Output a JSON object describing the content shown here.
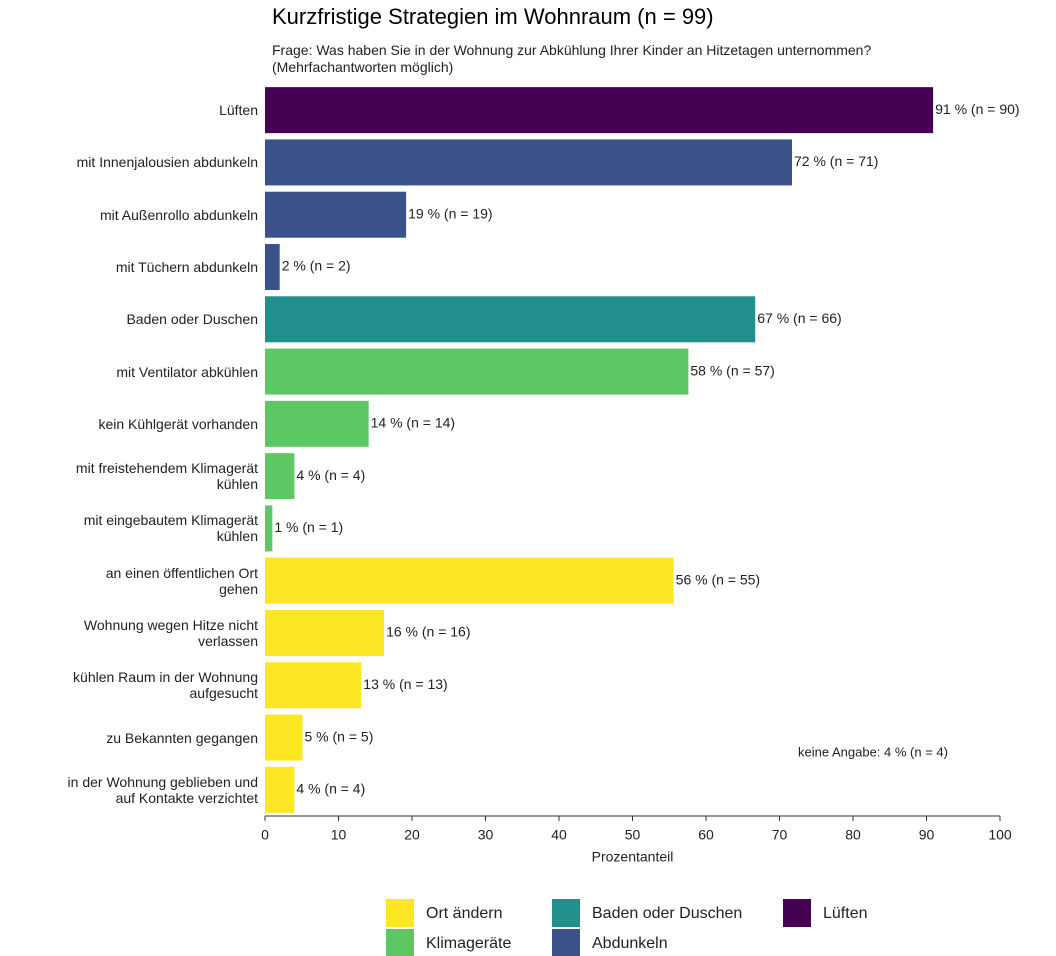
{
  "chart_data": {
    "type": "bar",
    "orientation": "horizontal",
    "title": "Kurzfristige Strategien im Wohnraum (n = 99)",
    "subtitle": "Frage: Was haben Sie in der Wohnung zur Abkühlung Ihrer Kinder an Hitzetagen unternommen? (Mehrfachantworten möglich)",
    "xlabel": "Prozentanteil",
    "annotation": "keine Angabe: 4 % (n = 4)",
    "categories": [
      "Lüften",
      "mit Innenjalousien abdunkeln",
      "mit Außenrollo abdunkeln",
      "mit Tüchern abdunkeln",
      "Baden oder Duschen",
      "mit Ventilator abkühlen",
      "kein Kühlgerät vorhanden",
      "mit freistehendem Klimagerät\nkühlen",
      "mit eingebautem Klimagerät\nkühlen",
      "an einen öffentlichen Ort\ngehen",
      "Wohnung wegen Hitze nicht\nverlassen",
      "kühlen Raum in der Wohnung\naufgesucht",
      "zu Bekannten gegangen",
      "in der Wohnung geblieben und\nauf Kontakte verzichtet"
    ],
    "series": [
      {
        "name": "Ort ändern",
        "color": "#fde725",
        "values": [
          null,
          null,
          null,
          null,
          null,
          null,
          null,
          null,
          null,
          55.6,
          16.2,
          13.1,
          5.1,
          4.0
        ],
        "value_labels": [
          null,
          null,
          null,
          null,
          null,
          null,
          null,
          null,
          null,
          "56 % (n = 55)",
          "16 % (n = 16)",
          "13 % (n = 13)",
          "5 % (n = 5)",
          "4 % (n = 4)"
        ]
      },
      {
        "name": "Klimageräte",
        "color": "#5dc863",
        "values": [
          null,
          null,
          null,
          null,
          null,
          57.6,
          14.1,
          4.0,
          1.0,
          null,
          null,
          null,
          null,
          null
        ],
        "value_labels": [
          null,
          null,
          null,
          null,
          null,
          "58 % (n = 57)",
          "14 % (n = 14)",
          "4 % (n = 4)",
          "1 % (n = 1)",
          null,
          null,
          null,
          null,
          null
        ]
      },
      {
        "name": "Baden oder Duschen",
        "color": "#21908d",
        "values": [
          null,
          null,
          null,
          null,
          66.7,
          null,
          null,
          null,
          null,
          null,
          null,
          null,
          null,
          null
        ],
        "value_labels": [
          null,
          null,
          null,
          null,
          "67 % (n = 66)",
          null,
          null,
          null,
          null,
          null,
          null,
          null,
          null,
          null
        ]
      },
      {
        "name": "Abdunkeln",
        "color": "#3b528b",
        "values": [
          null,
          71.7,
          19.2,
          2.0,
          null,
          null,
          null,
          null,
          null,
          null,
          null,
          null,
          null,
          null
        ],
        "value_labels": [
          null,
          "72 % (n = 71)",
          "19 % (n = 19)",
          "2 % (n = 2)",
          null,
          null,
          null,
          null,
          null,
          null,
          null,
          null,
          null,
          null
        ]
      },
      {
        "name": "Lüften",
        "color": "#440154",
        "values": [
          90.9,
          null,
          null,
          null,
          null,
          null,
          null,
          null,
          null,
          null,
          null,
          null,
          null,
          null
        ],
        "value_labels": [
          "91 % (n = 90)",
          null,
          null,
          null,
          null,
          null,
          null,
          null,
          null,
          null,
          null,
          null,
          null,
          null
        ]
      }
    ],
    "xlim": [
      0,
      100
    ],
    "xticks": [
      0,
      10,
      20,
      30,
      40,
      50,
      60,
      70,
      80,
      90,
      100
    ],
    "grid": false,
    "legend": "bottom"
  }
}
